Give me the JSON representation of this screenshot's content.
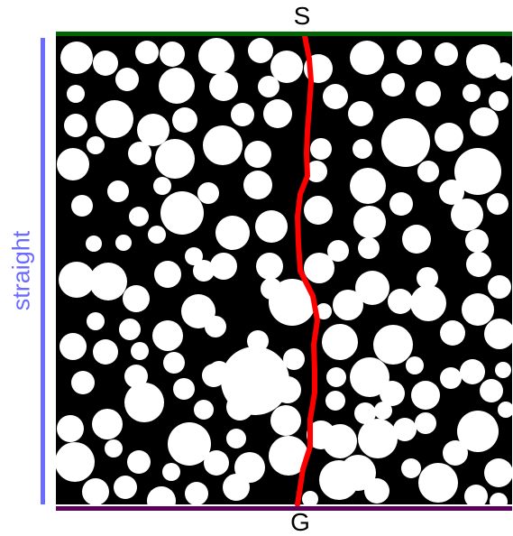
{
  "labels": {
    "start": "S",
    "goal": "G",
    "side": "straight"
  },
  "colors": {
    "background": "#000000",
    "obstacle": "#ffffff",
    "path": "#ff0000",
    "start_edge": "#006400",
    "goal_edge": "#5b005b",
    "side_bar": "#6b6bff",
    "text": "#000000"
  },
  "elements": {
    "path_name": "robot-path",
    "obstacle_name": "obstacle-disc"
  }
}
